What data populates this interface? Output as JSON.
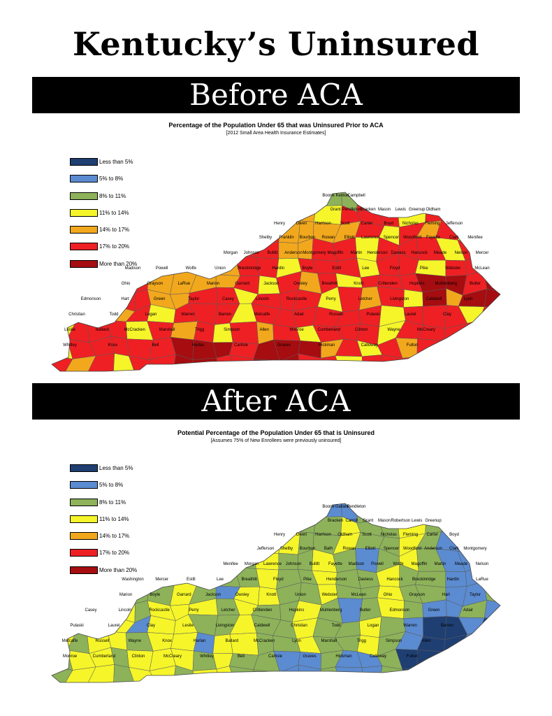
{
  "title": "Kentucky’s Uninsured",
  "before": {
    "banner": "Before ACA",
    "subtitle": "Percentage of the Population Under 65 that was Uninsured Prior to ACA",
    "note": "[2012 Small Area Health Insurance Estimates]"
  },
  "after": {
    "banner": "After ACA",
    "subtitle": "Potential Percentage of the Population Under 65 that is Uninsured",
    "note": "[Assumes 75% of New Enrollees were previously uninsured]"
  },
  "legend": [
    {
      "label": "Less than 5%",
      "color": "#1f3f73"
    },
    {
      "label": "5% to 8%",
      "color": "#5b8bd0"
    },
    {
      "label": "8% to 11%",
      "color": "#8db25a"
    },
    {
      "label": "11% to 14%",
      "color": "#f5f52a"
    },
    {
      "label": "14% to 17%",
      "color": "#f2a81d"
    },
    {
      "label": "17% to 20%",
      "color": "#ee2024"
    },
    {
      "label": "More than 20%",
      "color": "#a50d10"
    }
  ],
  "before_labels": [
    "Boone",
    "Kenton",
    "Campbell",
    "Grant",
    "Pendleton",
    "Bracken",
    "Mason",
    "Lewis",
    "Greenup",
    "Oldham",
    "Henry",
    "Owen",
    "Harrison",
    "Scott",
    "Carter",
    "Boyd",
    "Nicholas",
    "Fleming",
    "Jefferson",
    "Shelby",
    "Franklin",
    "Bourbon",
    "Rowan",
    "Elliott",
    "Lawrence",
    "Spencer",
    "Woodford",
    "Fayette",
    "Clark",
    "Menifee",
    "Morgan",
    "Johnson",
    "Bullitt",
    "Anderson",
    "Montgomery",
    "Magoffin",
    "Martin",
    "Henderson",
    "Daviess",
    "Hancock",
    "Meade",
    "Nelson",
    "Mercer",
    "Madison",
    "Powell",
    "Wolfe",
    "Union",
    "Breckinridge",
    "Hardin",
    "Boyle",
    "Estill",
    "Lee",
    "Floyd",
    "Pike",
    "Webster",
    "McLean",
    "Ohio",
    "Grayson",
    "LaRue",
    "Marion",
    "Garrard",
    "Jackson",
    "Owsley",
    "Breathitt",
    "Knott",
    "Crittenden",
    "Hopkins",
    "Muhlenberg",
    "Butler",
    "Edmonson",
    "Hart",
    "Green",
    "Taylor",
    "Casey",
    "Lincoln",
    "Rockcastle",
    "Perry",
    "Letcher",
    "Livingston",
    "Caldwell",
    "Lyon",
    "Christian",
    "Todd",
    "Logan",
    "Warren",
    "Barren",
    "Metcalfe",
    "Adair",
    "Russell",
    "Pulaski",
    "Laurel",
    "Clay",
    "Leslie",
    "Ballard",
    "McCracken",
    "Marshall",
    "Trigg",
    "Simpson",
    "Allen",
    "Monroe",
    "Cumberland",
    "Clinton",
    "Wayne",
    "McCreary",
    "Whitley",
    "Knox",
    "Bell",
    "Harlan",
    "Carlisle",
    "Graves",
    "Hickman",
    "Calloway",
    "Fulton"
  ],
  "after_labels": [
    "Boone",
    "Gallatin",
    "Pendleton",
    "Bracken",
    "Carroll",
    "Grant",
    "Mason",
    "Robertson",
    "Lewis",
    "Greenup",
    "Henry",
    "Owen",
    "Harrison",
    "Oldham",
    "Scott",
    "Nicholas",
    "Fleming",
    "Carter",
    "Boyd",
    "Jefferson",
    "Shelby",
    "Bourbon",
    "Bath",
    "Rowan",
    "Elliott",
    "Spencer",
    "Woodford",
    "Anderson",
    "Clark",
    "Montgomery",
    "Menifee",
    "Morgan",
    "Lawrence",
    "Johnson",
    "Bullitt",
    "Fayette",
    "Madison",
    "Powell",
    "Wolfe",
    "Magoffin",
    "Martin",
    "Meade",
    "Nelson",
    "Washington",
    "Mercer",
    "Estill",
    "Lee",
    "Breathitt",
    "Floyd",
    "Pike",
    "Henderson",
    "Daviess",
    "Hancock",
    "Breckinridge",
    "Hardin",
    "LaRue",
    "Marion",
    "Boyle",
    "Garrard",
    "Jackson",
    "Owsley",
    "Knott",
    "Union",
    "Webster",
    "McLean",
    "Ohio",
    "Grayson",
    "Hart",
    "Taylor",
    "Casey",
    "Lincoln",
    "Rockcastle",
    "Perry",
    "Letcher",
    "Crittenden",
    "Hopkins",
    "Muhlenberg",
    "Butler",
    "Edmonson",
    "Green",
    "Adair",
    "Pulaski",
    "Laurel",
    "Clay",
    "Leslie",
    "Livingston",
    "Caldwell",
    "Christian",
    "Todd",
    "Logan",
    "Warren",
    "Barren",
    "Metcalfe",
    "Russell",
    "Wayne",
    "Knox",
    "Harlan",
    "Ballard",
    "McCracken",
    "Lyon",
    "Marshall",
    "Trigg",
    "Simpson",
    "Allen",
    "Monroe",
    "Cumberland",
    "Clinton",
    "McCreary",
    "Whitley",
    "Bell",
    "Carlisle",
    "Graves",
    "Hickman",
    "Calloway",
    "Fulton"
  ]
}
